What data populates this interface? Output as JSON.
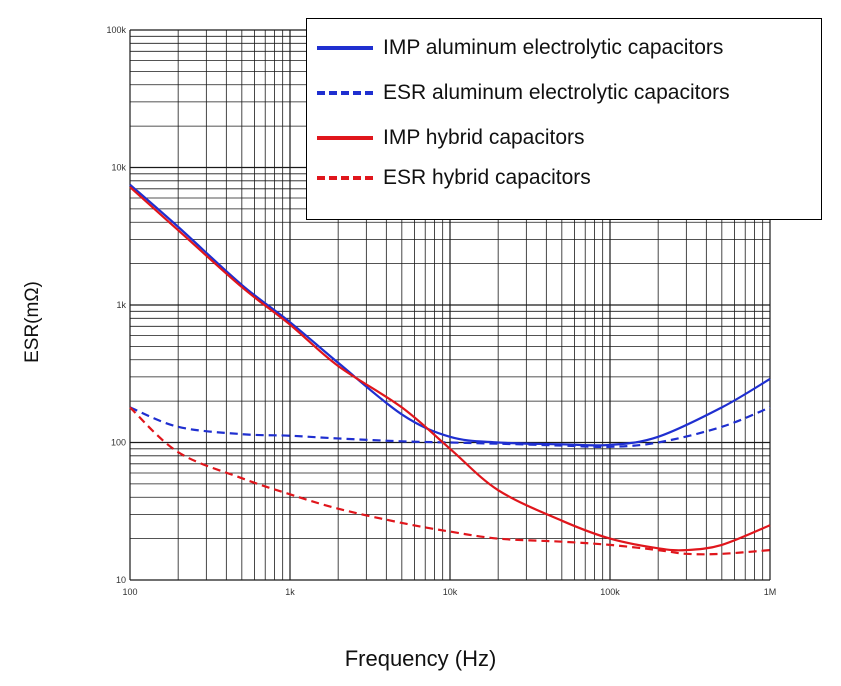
{
  "chart_data": {
    "type": "line",
    "xlabel": "Frequency (Hz)",
    "ylabel": "ESR(mΩ)",
    "x_scale": "log",
    "y_scale": "log",
    "xlim": [
      100,
      1000000
    ],
    "ylim": [
      10,
      100000
    ],
    "x_tick_values": [
      100,
      1000,
      10000,
      100000,
      1000000
    ],
    "x_tick_labels": [
      "100",
      "1k",
      "10k",
      "100k",
      "1M"
    ],
    "y_tick_values": [
      10,
      100,
      1000,
      10000,
      100000
    ],
    "y_tick_labels": [
      "10",
      "100",
      "1k",
      "10k",
      "100k"
    ],
    "grid": true,
    "legend_position": "top-right",
    "series": [
      {
        "name": "IMP aluminum electrolytic capacitors",
        "color": "#1f2fd0",
        "style": "solid",
        "x": [
          100,
          200,
          500,
          1000,
          2000,
          5000,
          10000,
          20000,
          50000,
          100000,
          200000,
          500000,
          1000000
        ],
        "y": [
          7500,
          3700,
          1400,
          750,
          380,
          160,
          110,
          100,
          97,
          96,
          110,
          180,
          290
        ]
      },
      {
        "name": "ESR aluminum electrolytic capacitors",
        "color": "#1f2fd0",
        "style": "dashed",
        "x": [
          100,
          200,
          500,
          1000,
          2000,
          5000,
          10000,
          20000,
          50000,
          100000,
          200000,
          500000,
          1000000
        ],
        "y": [
          180,
          130,
          115,
          112,
          107,
          102,
          100,
          98,
          95,
          93,
          100,
          130,
          180
        ]
      },
      {
        "name": "IMP hybrid capacitors",
        "color": "#e0161c",
        "style": "solid",
        "x": [
          100,
          200,
          500,
          1000,
          2000,
          5000,
          10000,
          20000,
          50000,
          100000,
          200000,
          300000,
          500000,
          1000000
        ],
        "y": [
          7200,
          3500,
          1350,
          720,
          360,
          180,
          90,
          45,
          27,
          20,
          17,
          16.5,
          18,
          25
        ]
      },
      {
        "name": "ESR hybrid capacitors",
        "color": "#e0161c",
        "style": "dashed",
        "x": [
          100,
          200,
          500,
          1000,
          2000,
          5000,
          10000,
          20000,
          50000,
          100000,
          200000,
          300000,
          500000,
          1000000
        ],
        "y": [
          180,
          85,
          55,
          42,
          33,
          26,
          22.5,
          20,
          19,
          18,
          16.5,
          15.5,
          15.5,
          16.5
        ]
      }
    ]
  }
}
